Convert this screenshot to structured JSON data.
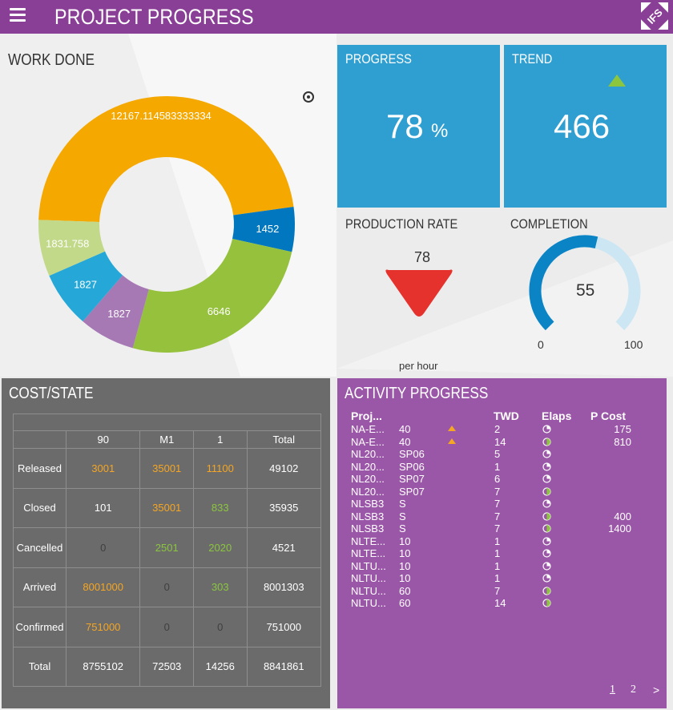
{
  "header": {
    "title": "PROJECT PROGRESS",
    "logo_text": "IFS"
  },
  "work_done": {
    "title": "WORK DONE",
    "chart_data": {
      "type": "pie",
      "title": "WORK DONE",
      "donut": true,
      "slices": [
        {
          "value": 12167.114583333334,
          "label": "12167.114583333334",
          "color": "#f5a800"
        },
        {
          "value": 1452,
          "label": "1452",
          "color": "#0077be"
        },
        {
          "value": 6646,
          "label": "6646",
          "color": "#96c13d"
        },
        {
          "value": 1827,
          "label": "1827",
          "color": "#a678b4"
        },
        {
          "value": 1827,
          "label": "1827",
          "color": "#25a8d8"
        },
        {
          "value": 1831.758,
          "label": "1831.758",
          "color": "#c2d98a"
        }
      ]
    }
  },
  "progress": {
    "title": "PROGRESS",
    "value": "78",
    "unit": "%"
  },
  "trend": {
    "title": "TREND",
    "value": "466",
    "direction": "up",
    "arrow_color": "#8cc63f"
  },
  "production_rate": {
    "title": "PRODUCTION RATE",
    "value": "78",
    "unit": "per hour",
    "arrow_color": "#e5322d"
  },
  "completion": {
    "title": "COMPLETION",
    "value": "55",
    "min": "0",
    "max": "100",
    "fill_fraction": 0.55,
    "fill_color": "#0b84c6",
    "track_color": "#cce6f4"
  },
  "cost_state": {
    "title": "COST/STATE",
    "columns": [
      "90",
      "M1",
      "1",
      "Total"
    ],
    "rows": [
      {
        "label": "Released",
        "cells": [
          {
            "v": "3001",
            "c": "orange"
          },
          {
            "v": "35001",
            "c": "orange"
          },
          {
            "v": "11100",
            "c": "orange"
          },
          {
            "v": "49102",
            "c": "white"
          }
        ]
      },
      {
        "label": "Closed",
        "cells": [
          {
            "v": "101",
            "c": "white"
          },
          {
            "v": "35001",
            "c": "orange"
          },
          {
            "v": "833",
            "c": "green"
          },
          {
            "v": "35935",
            "c": "white"
          }
        ]
      },
      {
        "label": "Cancelled",
        "cells": [
          {
            "v": "0",
            "c": "dim"
          },
          {
            "v": "2501",
            "c": "green"
          },
          {
            "v": "2020",
            "c": "green"
          },
          {
            "v": "4521",
            "c": "white"
          }
        ]
      },
      {
        "label": "Arrived",
        "cells": [
          {
            "v": "8001000",
            "c": "orange"
          },
          {
            "v": "0",
            "c": "dim"
          },
          {
            "v": "303",
            "c": "green"
          },
          {
            "v": "8001303",
            "c": "white"
          }
        ]
      },
      {
        "label": "Confirmed",
        "cells": [
          {
            "v": "751000",
            "c": "orange"
          },
          {
            "v": "0",
            "c": "dim"
          },
          {
            "v": "0",
            "c": "dim"
          },
          {
            "v": "751000",
            "c": "white"
          }
        ]
      },
      {
        "label": "Total",
        "cells": [
          {
            "v": "8755102",
            "c": "white"
          },
          {
            "v": "72503",
            "c": "white"
          },
          {
            "v": "14256",
            "c": "white"
          },
          {
            "v": "8841861",
            "c": "white"
          }
        ]
      }
    ]
  },
  "activity": {
    "title": "ACTIVITY PROGRESS",
    "headers": {
      "proj": "Proj...",
      "twd": "TWD",
      "elaps": "Elaps",
      "pcost": "P Cost"
    },
    "rows": [
      {
        "proj": "NA-E...",
        "sub": "40",
        "warn": true,
        "twd": "2",
        "elaps": "quarter",
        "pcost": "175"
      },
      {
        "proj": "NA-E...",
        "sub": "40",
        "warn": true,
        "twd": "14",
        "elaps": "half",
        "pcost": "810"
      },
      {
        "proj": "NL20...",
        "sub": "SP06",
        "warn": false,
        "twd": "5",
        "elaps": "quarter",
        "pcost": ""
      },
      {
        "proj": "NL20...",
        "sub": "SP06",
        "warn": false,
        "twd": "1",
        "elaps": "quarter",
        "pcost": ""
      },
      {
        "proj": "NL20...",
        "sub": "SP07",
        "warn": false,
        "twd": "6",
        "elaps": "quarter",
        "pcost": ""
      },
      {
        "proj": "NL20...",
        "sub": "SP07",
        "warn": false,
        "twd": "7",
        "elaps": "half",
        "pcost": ""
      },
      {
        "proj": "NLSB3",
        "sub": "S",
        "warn": false,
        "twd": "7",
        "elaps": "quarter",
        "pcost": ""
      },
      {
        "proj": "NLSB3",
        "sub": "S",
        "warn": false,
        "twd": "7",
        "elaps": "half",
        "pcost": "400"
      },
      {
        "proj": "NLSB3",
        "sub": "S",
        "warn": false,
        "twd": "7",
        "elaps": "half",
        "pcost": "1400"
      },
      {
        "proj": "NLTE...",
        "sub": "10",
        "warn": false,
        "twd": "1",
        "elaps": "quarter",
        "pcost": ""
      },
      {
        "proj": "NLTE...",
        "sub": "10",
        "warn": false,
        "twd": "1",
        "elaps": "quarter",
        "pcost": ""
      },
      {
        "proj": "NLTU...",
        "sub": "10",
        "warn": false,
        "twd": "1",
        "elaps": "quarter",
        "pcost": ""
      },
      {
        "proj": "NLTU...",
        "sub": "10",
        "warn": false,
        "twd": "1",
        "elaps": "quarter",
        "pcost": ""
      },
      {
        "proj": "NLTU...",
        "sub": "60",
        "warn": false,
        "twd": "7",
        "elaps": "half",
        "pcost": ""
      },
      {
        "proj": "NLTU...",
        "sub": "60",
        "warn": false,
        "twd": "14",
        "elaps": "half",
        "pcost": ""
      }
    ],
    "pager": {
      "page1": "1",
      "page2": "2",
      "next": ">"
    },
    "warn_color": "#f5a623",
    "quarter_color": "#ffffff",
    "half_color": "#8cc63f"
  }
}
